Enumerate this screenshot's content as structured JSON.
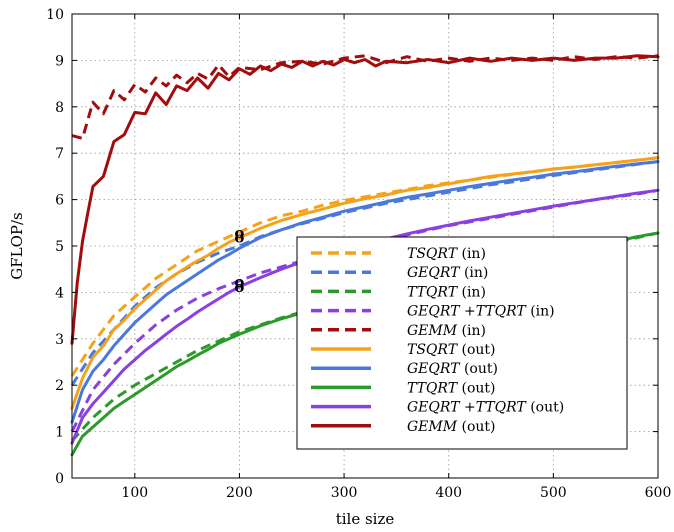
{
  "chart_data": {
    "type": "line",
    "xlabel": "tile size",
    "ylabel": "GFLOP/s",
    "xlim": [
      40,
      600
    ],
    "ylim": [
      0,
      10
    ],
    "xticks": [
      100,
      200,
      300,
      400,
      500,
      600
    ],
    "yticks": [
      0,
      1,
      2,
      3,
      4,
      5,
      6,
      7,
      8,
      9,
      10
    ],
    "grid": true,
    "legend_position": "lower-right",
    "series": [
      {
        "name": "TSQRT (in)",
        "emph": "TSQRT",
        "suffix": " (in)",
        "color": "#f4a21c",
        "dashed": true,
        "x": [
          40,
          60,
          80,
          100,
          120,
          140,
          160,
          180,
          200,
          220,
          240,
          260,
          280,
          300,
          320,
          340,
          360,
          380,
          400,
          420,
          440,
          460,
          480,
          500,
          520,
          540,
          560,
          580,
          600
        ],
        "y": [
          2.2,
          2.9,
          3.5,
          3.9,
          4.3,
          4.6,
          4.9,
          5.1,
          5.3,
          5.5,
          5.65,
          5.75,
          5.88,
          5.98,
          6.06,
          6.14,
          6.22,
          6.3,
          6.36,
          6.42,
          6.48,
          6.54,
          6.6,
          6.66,
          6.7,
          6.75,
          6.8,
          6.85,
          6.9
        ]
      },
      {
        "name": "GEQRT (in)",
        "emph": "GEQRT",
        "suffix": " (in)",
        "color": "#4a78df",
        "dashed": true,
        "x": [
          40,
          60,
          80,
          100,
          120,
          140,
          160,
          180,
          200,
          220,
          240,
          260,
          280,
          300,
          320,
          340,
          360,
          380,
          400,
          420,
          440,
          460,
          480,
          500,
          520,
          540,
          560,
          580,
          600
        ],
        "y": [
          2.0,
          2.7,
          3.2,
          3.7,
          4.1,
          4.4,
          4.65,
          4.85,
          5.0,
          5.2,
          5.35,
          5.48,
          5.6,
          5.72,
          5.82,
          5.92,
          6.0,
          6.08,
          6.16,
          6.24,
          6.32,
          6.38,
          6.45,
          6.52,
          6.58,
          6.64,
          6.7,
          6.76,
          6.82
        ]
      },
      {
        "name": "TTQRT (in)",
        "emph": "TTQRT",
        "suffix": " (in)",
        "color": "#2a9a2a",
        "dashed": true,
        "x": [
          40,
          60,
          80,
          100,
          120,
          140,
          160,
          180,
          200,
          220,
          240,
          260,
          280,
          300,
          320,
          340,
          360,
          380,
          400,
          420,
          440,
          460,
          480,
          500,
          520,
          540,
          560,
          580,
          600
        ],
        "y": [
          0.8,
          1.3,
          1.7,
          2.0,
          2.25,
          2.5,
          2.75,
          2.95,
          3.15,
          3.3,
          3.45,
          3.58,
          3.68,
          3.78,
          3.88,
          3.98,
          4.08,
          4.18,
          4.28,
          4.38,
          4.48,
          4.58,
          4.68,
          4.78,
          4.88,
          4.98,
          5.08,
          5.18,
          5.28
        ]
      },
      {
        "name": "GEQRT +TTQRT (in)",
        "emph": "GEQRT +TTQRT",
        "suffix": " (in)",
        "color": "#8a3fe0",
        "dashed": true,
        "x": [
          40,
          60,
          80,
          100,
          120,
          140,
          160,
          180,
          200,
          220,
          240,
          260,
          280,
          300,
          320,
          340,
          360,
          380,
          400,
          420,
          440,
          460,
          480,
          500,
          520,
          540,
          560,
          580,
          600
        ],
        "y": [
          1.0,
          1.9,
          2.45,
          2.9,
          3.3,
          3.62,
          3.88,
          4.08,
          4.25,
          4.42,
          4.55,
          4.68,
          4.8,
          4.92,
          5.03,
          5.14,
          5.24,
          5.34,
          5.44,
          5.52,
          5.6,
          5.68,
          5.76,
          5.84,
          5.92,
          6.0,
          6.06,
          6.12,
          6.2
        ]
      },
      {
        "name": "GEMM (in)",
        "emph": "GEMM",
        "suffix": " (in)",
        "color": "#a30c0c",
        "dashed": true,
        "x": [
          40,
          50,
          60,
          70,
          80,
          90,
          100,
          110,
          120,
          130,
          140,
          150,
          160,
          170,
          180,
          190,
          200,
          220,
          240,
          260,
          280,
          300,
          320,
          340,
          360,
          380,
          400,
          420,
          440,
          460,
          480,
          500,
          520,
          540,
          560,
          580,
          600
        ],
        "y": [
          7.38,
          7.32,
          8.1,
          7.85,
          8.35,
          8.15,
          8.48,
          8.32,
          8.62,
          8.45,
          8.68,
          8.52,
          8.72,
          8.6,
          8.9,
          8.65,
          8.85,
          8.8,
          8.95,
          8.98,
          8.92,
          9.05,
          9.1,
          8.95,
          9.08,
          8.98,
          9.05,
          8.98,
          9.05,
          9.0,
          9.05,
          9.0,
          9.08,
          9.02,
          9.08,
          9.05,
          9.1
        ]
      },
      {
        "name": "TSQRT (out)",
        "emph": "TSQRT",
        "suffix": " (out)",
        "color": "#f4a21c",
        "dashed": false,
        "x": [
          40,
          50,
          60,
          70,
          80,
          90,
          100,
          110,
          120,
          130,
          140,
          150,
          160,
          170,
          180,
          190,
          200,
          220,
          240,
          260,
          280,
          300,
          320,
          340,
          360,
          380,
          400,
          420,
          440,
          460,
          480,
          500,
          520,
          540,
          560,
          580,
          600
        ],
        "y": [
          1.5,
          2.15,
          2.6,
          2.85,
          3.2,
          3.4,
          3.65,
          3.85,
          4.05,
          4.25,
          4.4,
          4.55,
          4.68,
          4.8,
          4.95,
          5.08,
          5.18,
          5.38,
          5.55,
          5.68,
          5.8,
          5.92,
          6.02,
          6.1,
          6.2,
          6.26,
          6.34,
          6.42,
          6.5,
          6.55,
          6.6,
          6.66,
          6.7,
          6.75,
          6.8,
          6.85,
          6.9
        ]
      },
      {
        "name": "GEQRT (out)",
        "emph": "GEQRT",
        "suffix": " (out)",
        "color": "#4a78df",
        "dashed": false,
        "x": [
          40,
          50,
          60,
          70,
          80,
          90,
          100,
          110,
          120,
          130,
          140,
          150,
          160,
          170,
          180,
          190,
          200,
          220,
          240,
          260,
          280,
          300,
          320,
          340,
          360,
          380,
          400,
          420,
          440,
          460,
          480,
          500,
          520,
          540,
          560,
          580,
          600
        ],
        "y": [
          1.2,
          1.9,
          2.3,
          2.55,
          2.85,
          3.1,
          3.35,
          3.55,
          3.75,
          3.95,
          4.1,
          4.25,
          4.4,
          4.55,
          4.7,
          4.82,
          4.95,
          5.18,
          5.35,
          5.5,
          5.62,
          5.75,
          5.85,
          5.95,
          6.05,
          6.12,
          6.2,
          6.28,
          6.35,
          6.42,
          6.48,
          6.55,
          6.6,
          6.66,
          6.72,
          6.77,
          6.82
        ]
      },
      {
        "name": "TTQRT (out)",
        "emph": "TTQRT",
        "suffix": " (out)",
        "color": "#2a9a2a",
        "dashed": false,
        "x": [
          40,
          50,
          60,
          70,
          80,
          90,
          100,
          110,
          120,
          130,
          140,
          150,
          160,
          170,
          180,
          190,
          200,
          220,
          240,
          260,
          280,
          300,
          320,
          340,
          360,
          380,
          400,
          420,
          440,
          460,
          480,
          500,
          520,
          540,
          560,
          580,
          600
        ],
        "y": [
          0.5,
          0.9,
          1.1,
          1.3,
          1.5,
          1.65,
          1.8,
          1.95,
          2.1,
          2.25,
          2.4,
          2.52,
          2.65,
          2.77,
          2.9,
          3.0,
          3.1,
          3.28,
          3.43,
          3.56,
          3.68,
          3.8,
          3.9,
          4.0,
          4.1,
          4.2,
          4.3,
          4.4,
          4.5,
          4.6,
          4.7,
          4.8,
          4.9,
          5.0,
          5.1,
          5.2,
          5.28
        ]
      },
      {
        "name": "GEQRT +TTQRT (out)",
        "emph": "GEQRT +TTQRT",
        "suffix": " (out)",
        "color": "#8a3fe0",
        "dashed": false,
        "x": [
          40,
          50,
          60,
          70,
          80,
          90,
          100,
          110,
          120,
          130,
          140,
          150,
          160,
          170,
          180,
          190,
          200,
          220,
          240,
          260,
          280,
          300,
          320,
          340,
          360,
          380,
          400,
          420,
          440,
          460,
          480,
          500,
          520,
          540,
          560,
          580,
          600
        ],
        "y": [
          0.75,
          1.3,
          1.6,
          1.85,
          2.1,
          2.35,
          2.55,
          2.75,
          2.92,
          3.1,
          3.27,
          3.42,
          3.58,
          3.72,
          3.86,
          4.0,
          4.12,
          4.32,
          4.5,
          4.66,
          4.8,
          4.92,
          5.04,
          5.15,
          5.26,
          5.36,
          5.45,
          5.54,
          5.62,
          5.7,
          5.78,
          5.86,
          5.93,
          6.0,
          6.07,
          6.14,
          6.2
        ]
      },
      {
        "name": "GEMM (out)",
        "emph": "GEMM",
        "suffix": " (out)",
        "color": "#a30c0c",
        "dashed": false,
        "x": [
          40,
          45,
          50,
          55,
          60,
          70,
          80,
          90,
          100,
          110,
          120,
          130,
          140,
          150,
          160,
          170,
          180,
          190,
          200,
          210,
          220,
          230,
          240,
          250,
          260,
          270,
          280,
          290,
          300,
          310,
          320,
          330,
          340,
          360,
          380,
          400,
          420,
          440,
          460,
          480,
          500,
          520,
          540,
          560,
          580,
          600
        ],
        "y": [
          2.9,
          4.2,
          5.1,
          5.7,
          6.28,
          6.5,
          7.25,
          7.4,
          7.88,
          7.85,
          8.3,
          8.05,
          8.45,
          8.35,
          8.62,
          8.4,
          8.72,
          8.58,
          8.82,
          8.7,
          8.88,
          8.78,
          8.92,
          8.85,
          8.98,
          8.88,
          8.98,
          8.9,
          9.02,
          8.95,
          9.02,
          8.88,
          8.98,
          8.95,
          9.02,
          8.95,
          9.05,
          8.98,
          9.05,
          9.0,
          9.05,
          9.0,
          9.05,
          9.05,
          9.1,
          9.08
        ]
      }
    ],
    "annotations": [
      {
        "label": "o",
        "x": 200,
        "y": 5.28
      },
      {
        "label": "o",
        "x": 200,
        "y": 5.18
      },
      {
        "label": "o",
        "x": 200,
        "y": 4.22
      },
      {
        "label": "o",
        "x": 200,
        "y": 4.12
      }
    ]
  }
}
